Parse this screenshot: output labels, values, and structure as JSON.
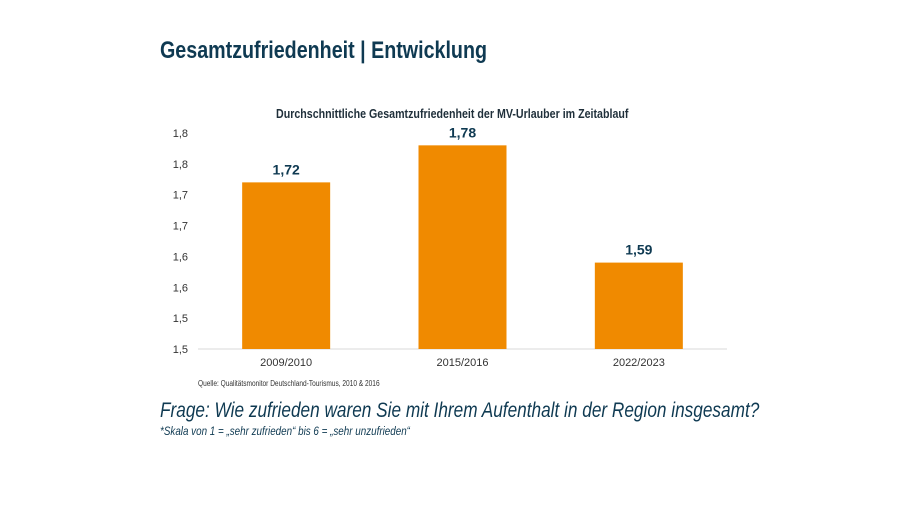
{
  "slide": {
    "title": "Gesamtzufriedenheit | Entwicklung",
    "source": "Quelle: Qualitätsmonitor Deutschland-Tourismus, 2010 & 2016",
    "question": "Frage: Wie zufrieden waren Sie mit Ihrem Aufenthalt in der Region insgesamt?",
    "scale_note": "*Skala von 1 = „sehr zufrieden“ bis  6 = „sehr unzufrieden“"
  },
  "chart_data": {
    "type": "bar",
    "title": "Durchschnittliche Gesamtzufriedenheit der MV-Urlauber im Zeitablauf",
    "categories": [
      "2009/2010",
      "2015/2016",
      "2022/2023"
    ],
    "values": [
      1.72,
      1.78,
      1.59
    ],
    "data_labels": [
      "1,72",
      "1,78",
      "1,59"
    ],
    "ylim": [
      1.45,
      1.8
    ],
    "yticks": [
      1.45,
      1.5,
      1.55,
      1.6,
      1.65,
      1.7,
      1.75,
      1.8
    ],
    "ytick_labels": [
      "1,5",
      "1,5",
      "1,6",
      "1,6",
      "1,7",
      "1,7",
      "1,8",
      "1,8"
    ],
    "grid": false,
    "bar_color": "#f08a00",
    "xlabel": "",
    "ylabel": ""
  }
}
